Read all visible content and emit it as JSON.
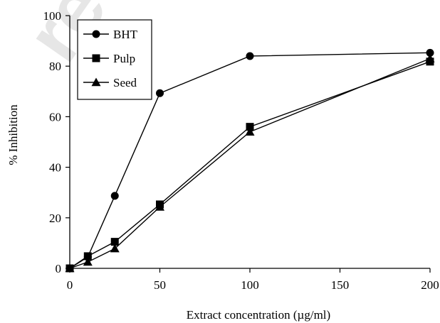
{
  "watermark": "re",
  "chart_data": {
    "type": "line",
    "xlabel": "Extract concentration (µg/ml)",
    "ylabel": "% Inhibition",
    "xlim": [
      0,
      200
    ],
    "ylim": [
      0,
      100
    ],
    "xticks": [
      0,
      50,
      100,
      150,
      200
    ],
    "yticks": [
      0,
      20,
      40,
      60,
      80,
      100
    ],
    "x": [
      0,
      10,
      25,
      50,
      100,
      200
    ],
    "series": [
      {
        "name": "BHT",
        "marker": "circle",
        "values": [
          0,
          4.5,
          28.7,
          69.3,
          84.0,
          85.3
        ]
      },
      {
        "name": "Pulp",
        "marker": "square",
        "values": [
          0,
          4.8,
          10.5,
          25.3,
          56.0,
          81.8
        ]
      },
      {
        "name": "Seed",
        "marker": "triangle",
        "values": [
          0,
          2.5,
          7.8,
          24.3,
          54.0,
          83.0
        ]
      }
    ],
    "legend_position": "top-left",
    "grid": false
  }
}
